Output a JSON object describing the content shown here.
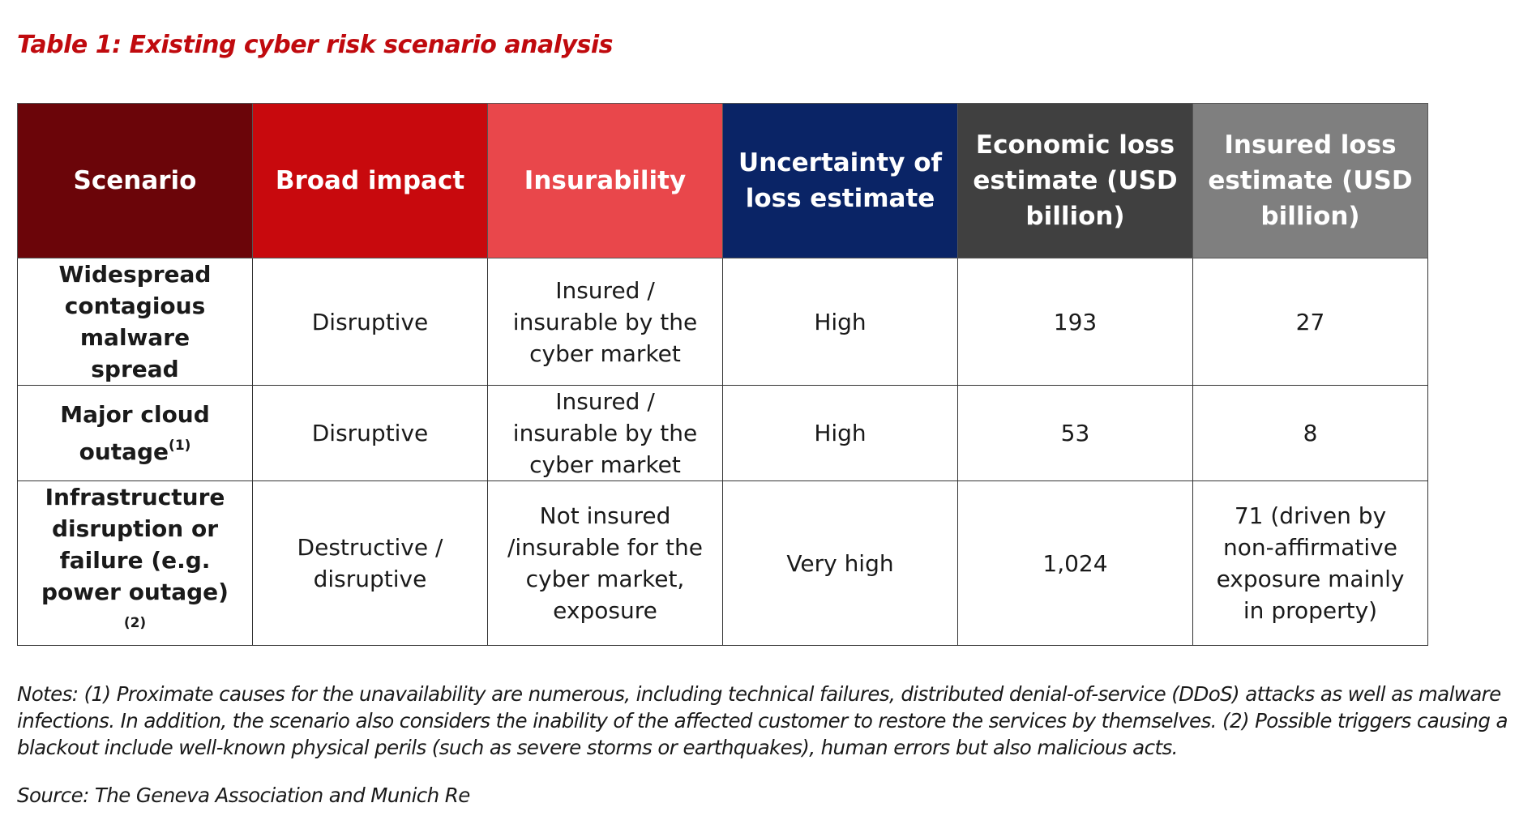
{
  "title": "Table 1: Existing cyber risk scenario analysis",
  "table": {
    "headers": [
      "Scenario",
      "Broad impact",
      "Insurability",
      "Uncertainty of loss estimate",
      "Economic loss estimate (USD billion)",
      "Insured loss estimate (USD billion)"
    ],
    "rows": [
      [
        {
          "text": "Widespread contagious malware spread"
        },
        "Disruptive",
        "Insured / insurable by the cyber market",
        "High",
        "193",
        "27"
      ],
      [
        {
          "text": "Major cloud outage",
          "note": "(1)"
        },
        "Disruptive",
        "Insured / insurable by the cyber market",
        "High",
        "53",
        "8"
      ],
      [
        {
          "text": "Infrastructure disruption or failure (e.g. power outage)",
          "note": "(2)"
        },
        "Destructive / disruptive",
        "Not insured /insurable for the cyber market, exposure",
        "Very high",
        "1,024",
        "71 (driven by non-affirmative exposure mainly in property)"
      ]
    ]
  },
  "notes": "Notes: (1) Proximate causes for the unavailability are numerous, including technical failures, distributed denial-of-service (DDoS) attacks as well as malware infections. In addition, the scenario also considers the inability of the affected customer to restore the services by themselves.   (2) Possible triggers causing a blackout include well-known physical perils (such as severe storms or earthquakes), human errors but also malicious acts.",
  "source": "Source: The Geneva Association and Munich Re"
}
